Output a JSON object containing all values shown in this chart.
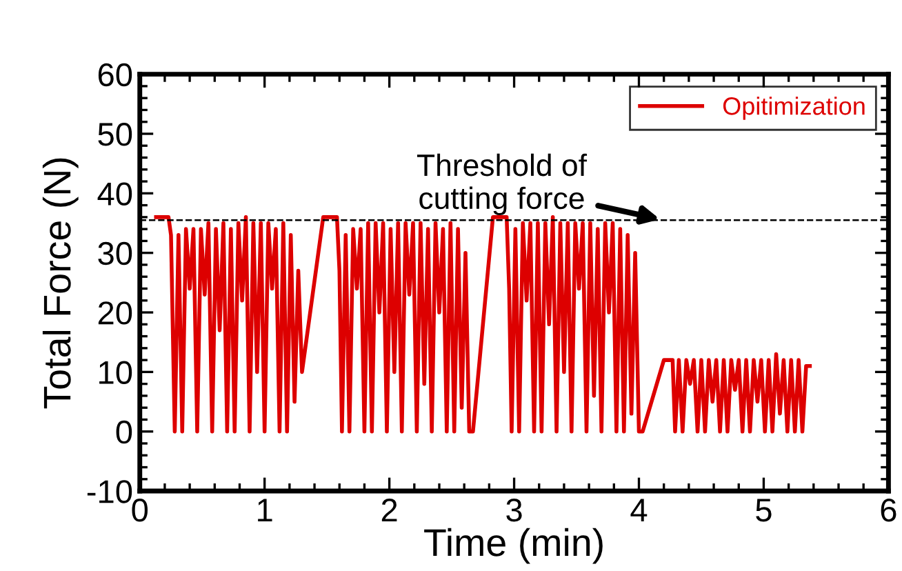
{
  "chart_data": {
    "type": "line",
    "xlabel": "Time (min)",
    "ylabel": "Total Force (N)",
    "xlim": [
      0,
      6
    ],
    "xticks": [
      0,
      1,
      2,
      3,
      4,
      5,
      6
    ],
    "ylim": [
      -10,
      60
    ],
    "yticks": [
      -10,
      0,
      10,
      20,
      30,
      40,
      50,
      60
    ],
    "grid": false,
    "legend": "top right",
    "marker": "none",
    "line_style": "solid",
    "ref_lines": [
      {
        "axis": "y",
        "value": 35.5,
        "label": null,
        "color": "#000000",
        "line_style": "dashed"
      }
    ],
    "annotations": [
      {
        "text": "Threshold of\ncutting force",
        "x": 4.2,
        "y": 35.5
      }
    ],
    "series": [
      {
        "name": "Opitimization",
        "color": "#dd0000",
        "x": [
          0.13,
          0.23,
          0.25,
          0.28,
          0.31,
          0.34,
          0.37,
          0.4,
          0.43,
          0.46,
          0.49,
          0.52,
          0.55,
          0.58,
          0.61,
          0.64,
          0.67,
          0.7,
          0.73,
          0.76,
          0.79,
          0.82,
          0.85,
          0.88,
          0.91,
          0.94,
          0.97,
          1.0,
          1.03,
          1.06,
          1.09,
          1.12,
          1.15,
          1.18,
          1.21,
          1.24,
          1.27,
          1.3,
          1.47,
          1.58,
          1.6,
          1.62,
          1.65,
          1.68,
          1.71,
          1.74,
          1.77,
          1.8,
          1.83,
          1.86,
          1.89,
          1.92,
          1.95,
          1.98,
          2.01,
          2.04,
          2.07,
          2.1,
          2.13,
          2.16,
          2.19,
          2.22,
          2.25,
          2.28,
          2.31,
          2.34,
          2.37,
          2.4,
          2.43,
          2.46,
          2.49,
          2.52,
          2.55,
          2.58,
          2.61,
          2.64,
          2.67,
          2.83,
          2.94,
          2.96,
          2.98,
          3.01,
          3.04,
          3.07,
          3.1,
          3.13,
          3.16,
          3.19,
          3.22,
          3.25,
          3.28,
          3.31,
          3.34,
          3.37,
          3.4,
          3.43,
          3.46,
          3.49,
          3.52,
          3.55,
          3.58,
          3.61,
          3.64,
          3.67,
          3.7,
          3.73,
          3.76,
          3.79,
          3.82,
          3.85,
          3.88,
          3.91,
          3.94,
          3.97,
          4.0,
          4.03,
          4.2,
          4.27,
          4.29,
          4.32,
          4.35,
          4.38,
          4.41,
          4.44,
          4.47,
          4.5,
          4.53,
          4.56,
          4.59,
          4.62,
          4.65,
          4.68,
          4.71,
          4.74,
          4.77,
          4.8,
          4.83,
          4.86,
          4.89,
          4.92,
          4.95,
          4.98,
          5.01,
          5.04,
          5.07,
          5.1,
          5.13,
          5.16,
          5.19,
          5.22,
          5.25,
          5.28,
          5.31,
          5.34,
          5.37
        ],
        "values": [
          36,
          36,
          33,
          0,
          33,
          0,
          34,
          24,
          34,
          0,
          34,
          23,
          35,
          0,
          34,
          17,
          35,
          0,
          34,
          0,
          35,
          22,
          36,
          0,
          35,
          10,
          35,
          0,
          35,
          24,
          34,
          0,
          35,
          0,
          33,
          5,
          27,
          10,
          36,
          36,
          27,
          0,
          33,
          0,
          34,
          24,
          34,
          0,
          35,
          0,
          35,
          20,
          35,
          0,
          34,
          10,
          35,
          0,
          35,
          23,
          35,
          0,
          35,
          8,
          34,
          0,
          35,
          20,
          34,
          0,
          35,
          0,
          34,
          4,
          30,
          0,
          0,
          36,
          36,
          24,
          0,
          34,
          0,
          35,
          22,
          35,
          0,
          35,
          0,
          35,
          18,
          36,
          0,
          35,
          10,
          35,
          0,
          35,
          24,
          35,
          0,
          35,
          6,
          34,
          0,
          35,
          20,
          35,
          0,
          34,
          0,
          33,
          3,
          30,
          0,
          0,
          12,
          12,
          0,
          12,
          0,
          12,
          8,
          12,
          0,
          12,
          0,
          12,
          5,
          12,
          0,
          12,
          0,
          12,
          7,
          12,
          0,
          12,
          0,
          12,
          5,
          12,
          0,
          12,
          0,
          13,
          3,
          12,
          0,
          12,
          0,
          12,
          0,
          11,
          11
        ]
      }
    ]
  }
}
